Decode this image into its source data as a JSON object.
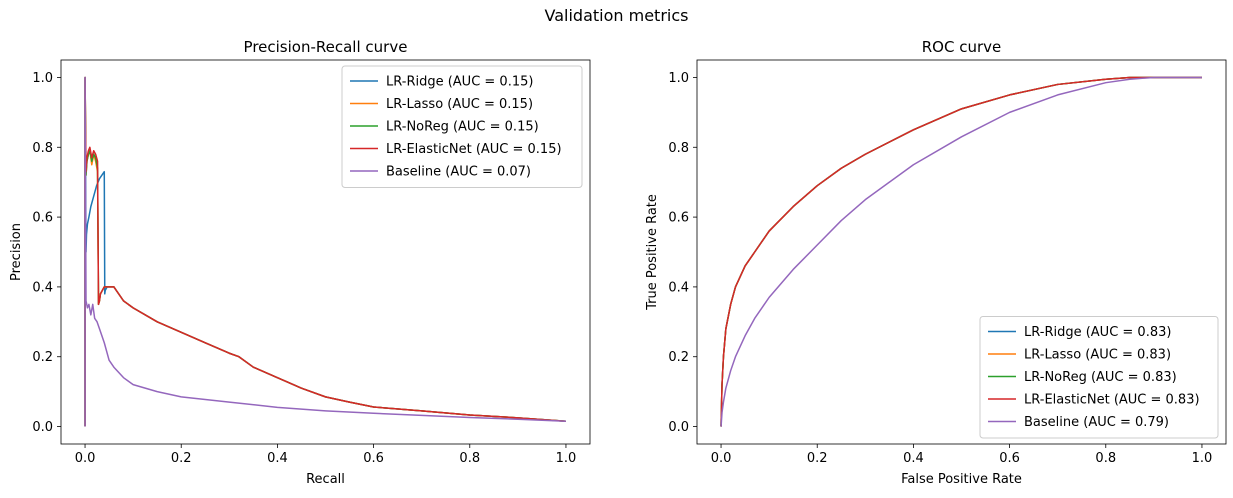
{
  "figure": {
    "suptitle": "Validation metrics"
  },
  "chart_data": [
    {
      "type": "line",
      "title": "Precision-Recall curve",
      "xlabel": "Recall",
      "ylabel": "Precision",
      "xlim": [
        -0.05,
        1.05
      ],
      "ylim": [
        -0.05,
        1.05
      ],
      "xticks": [
        "0.0",
        "0.2",
        "0.4",
        "0.6",
        "0.8",
        "1.0"
      ],
      "yticks": [
        "0.0",
        "0.2",
        "0.4",
        "0.6",
        "0.8",
        "1.0"
      ],
      "legend_position": "upper right",
      "series": [
        {
          "name": "LR-Ridge (AUC = 0.15)",
          "color": "#1f77b4",
          "x": [
            0,
            0,
            0.002,
            0.003,
            0.005,
            0.008,
            0.012,
            0.018,
            0.024,
            0.03,
            0.035,
            0.04,
            0.041,
            0.042,
            0.046,
            0.06,
            0.08,
            0.1,
            0.15,
            0.2,
            0.25,
            0.3,
            0.32,
            0.35,
            0.4,
            0.45,
            0.5,
            0.55,
            0.6,
            0.7,
            0.8,
            0.9,
            1.0
          ],
          "y": [
            0.0,
            1.0,
            0.5,
            0.55,
            0.58,
            0.6,
            0.63,
            0.66,
            0.69,
            0.71,
            0.72,
            0.73,
            0.38,
            0.39,
            0.4,
            0.4,
            0.36,
            0.34,
            0.3,
            0.27,
            0.24,
            0.21,
            0.2,
            0.17,
            0.14,
            0.11,
            0.085,
            0.07,
            0.056,
            0.045,
            0.033,
            0.025,
            0.015
          ]
        },
        {
          "name": "LR-Lasso (AUC = 0.15)",
          "color": "#ff7f0e",
          "x": [
            0,
            0,
            0.002,
            0.004,
            0.007,
            0.01,
            0.014,
            0.018,
            0.022,
            0.026,
            0.028,
            0.03,
            0.032,
            0.036,
            0.04,
            0.046,
            0.06,
            0.08,
            0.1,
            0.15,
            0.2,
            0.25,
            0.3,
            0.32,
            0.35,
            0.4,
            0.45,
            0.5,
            0.55,
            0.6,
            0.7,
            0.8,
            0.9,
            1.0
          ],
          "y": [
            0.0,
            1.0,
            0.72,
            0.76,
            0.78,
            0.79,
            0.75,
            0.78,
            0.76,
            0.73,
            0.35,
            0.36,
            0.38,
            0.39,
            0.4,
            0.4,
            0.4,
            0.36,
            0.34,
            0.3,
            0.27,
            0.24,
            0.21,
            0.2,
            0.17,
            0.14,
            0.11,
            0.085,
            0.07,
            0.056,
            0.045,
            0.033,
            0.025,
            0.015
          ]
        },
        {
          "name": "LR-NoReg (AUC = 0.15)",
          "color": "#2ca02c",
          "x": [
            0,
            0,
            0.002,
            0.004,
            0.007,
            0.01,
            0.014,
            0.018,
            0.022,
            0.026,
            0.028,
            0.03,
            0.032,
            0.036,
            0.04,
            0.046,
            0.06,
            0.08,
            0.1,
            0.15,
            0.2,
            0.25,
            0.3,
            0.32,
            0.35,
            0.4,
            0.45,
            0.5,
            0.55,
            0.6,
            0.7,
            0.8,
            0.9,
            1.0
          ],
          "y": [
            0.0,
            1.0,
            0.72,
            0.76,
            0.78,
            0.79,
            0.76,
            0.78,
            0.77,
            0.74,
            0.35,
            0.36,
            0.38,
            0.39,
            0.4,
            0.4,
            0.4,
            0.36,
            0.34,
            0.3,
            0.27,
            0.24,
            0.21,
            0.2,
            0.17,
            0.14,
            0.11,
            0.085,
            0.07,
            0.056,
            0.045,
            0.033,
            0.025,
            0.015
          ]
        },
        {
          "name": "LR-ElasticNet (AUC = 0.15)",
          "color": "#d62728",
          "x": [
            0,
            0,
            0.002,
            0.004,
            0.007,
            0.01,
            0.014,
            0.018,
            0.022,
            0.026,
            0.028,
            0.03,
            0.032,
            0.036,
            0.04,
            0.046,
            0.06,
            0.08,
            0.1,
            0.15,
            0.2,
            0.25,
            0.3,
            0.32,
            0.35,
            0.4,
            0.45,
            0.5,
            0.55,
            0.6,
            0.7,
            0.8,
            0.9,
            1.0
          ],
          "y": [
            0.0,
            1.0,
            0.73,
            0.77,
            0.79,
            0.8,
            0.77,
            0.79,
            0.78,
            0.76,
            0.35,
            0.36,
            0.38,
            0.39,
            0.4,
            0.4,
            0.4,
            0.36,
            0.34,
            0.3,
            0.27,
            0.24,
            0.21,
            0.2,
            0.17,
            0.14,
            0.11,
            0.085,
            0.07,
            0.056,
            0.045,
            0.033,
            0.025,
            0.015
          ]
        },
        {
          "name": "Baseline (AUC = 0.07)",
          "color": "#9467bd",
          "x": [
            0,
            0,
            0.002,
            0.005,
            0.008,
            0.012,
            0.016,
            0.02,
            0.025,
            0.03,
            0.04,
            0.05,
            0.06,
            0.08,
            0.1,
            0.15,
            0.2,
            0.3,
            0.4,
            0.5,
            0.6,
            0.7,
            0.8,
            0.9,
            1.0
          ],
          "y": [
            0.0,
            1.0,
            0.36,
            0.34,
            0.35,
            0.32,
            0.35,
            0.31,
            0.3,
            0.28,
            0.24,
            0.19,
            0.17,
            0.14,
            0.12,
            0.1,
            0.085,
            0.07,
            0.055,
            0.045,
            0.038,
            0.032,
            0.026,
            0.021,
            0.015
          ]
        }
      ]
    },
    {
      "type": "line",
      "title": "ROC curve",
      "xlabel": "False Positive Rate",
      "ylabel": "True Positive Rate",
      "xlim": [
        -0.05,
        1.05
      ],
      "ylim": [
        -0.05,
        1.05
      ],
      "xticks": [
        "0.0",
        "0.2",
        "0.4",
        "0.6",
        "0.8",
        "1.0"
      ],
      "yticks": [
        "0.0",
        "0.2",
        "0.4",
        "0.6",
        "0.8",
        "1.0"
      ],
      "legend_position": "lower right",
      "series": [
        {
          "name": "LR-Ridge (AUC = 0.83)",
          "color": "#1f77b4",
          "x": [
            0,
            0.002,
            0.005,
            0.01,
            0.02,
            0.03,
            0.05,
            0.07,
            0.1,
            0.15,
            0.2,
            0.25,
            0.3,
            0.4,
            0.5,
            0.6,
            0.7,
            0.8,
            0.85,
            0.9,
            1.0
          ],
          "y": [
            0,
            0.12,
            0.2,
            0.28,
            0.35,
            0.4,
            0.46,
            0.5,
            0.56,
            0.63,
            0.69,
            0.74,
            0.78,
            0.85,
            0.91,
            0.95,
            0.98,
            0.995,
            1.0,
            1.0,
            1.0
          ]
        },
        {
          "name": "LR-Lasso (AUC = 0.83)",
          "color": "#ff7f0e",
          "x": [
            0,
            0.002,
            0.005,
            0.01,
            0.02,
            0.03,
            0.05,
            0.07,
            0.1,
            0.15,
            0.2,
            0.25,
            0.3,
            0.4,
            0.5,
            0.6,
            0.7,
            0.8,
            0.85,
            0.9,
            1.0
          ],
          "y": [
            0,
            0.12,
            0.2,
            0.28,
            0.35,
            0.4,
            0.46,
            0.5,
            0.56,
            0.63,
            0.69,
            0.74,
            0.78,
            0.85,
            0.91,
            0.95,
            0.98,
            0.995,
            1.0,
            1.0,
            1.0
          ]
        },
        {
          "name": "LR-NoReg (AUC = 0.83)",
          "color": "#2ca02c",
          "x": [
            0,
            0.002,
            0.005,
            0.01,
            0.02,
            0.03,
            0.05,
            0.07,
            0.1,
            0.15,
            0.2,
            0.25,
            0.3,
            0.4,
            0.5,
            0.6,
            0.7,
            0.8,
            0.85,
            0.9,
            1.0
          ],
          "y": [
            0,
            0.12,
            0.2,
            0.28,
            0.35,
            0.4,
            0.46,
            0.5,
            0.56,
            0.63,
            0.69,
            0.74,
            0.78,
            0.85,
            0.91,
            0.95,
            0.98,
            0.995,
            1.0,
            1.0,
            1.0
          ]
        },
        {
          "name": "LR-ElasticNet (AUC = 0.83)",
          "color": "#d62728",
          "x": [
            0,
            0.002,
            0.005,
            0.01,
            0.02,
            0.03,
            0.05,
            0.07,
            0.1,
            0.15,
            0.2,
            0.25,
            0.3,
            0.4,
            0.5,
            0.6,
            0.7,
            0.8,
            0.85,
            0.9,
            1.0
          ],
          "y": [
            0,
            0.12,
            0.2,
            0.28,
            0.35,
            0.4,
            0.46,
            0.5,
            0.56,
            0.63,
            0.69,
            0.74,
            0.78,
            0.85,
            0.91,
            0.95,
            0.98,
            0.995,
            1.0,
            1.0,
            1.0
          ]
        },
        {
          "name": "Baseline (AUC = 0.79)",
          "color": "#9467bd",
          "x": [
            0,
            0.002,
            0.005,
            0.01,
            0.02,
            0.03,
            0.05,
            0.07,
            0.1,
            0.15,
            0.2,
            0.25,
            0.3,
            0.4,
            0.5,
            0.6,
            0.7,
            0.8,
            0.85,
            0.9,
            1.0
          ],
          "y": [
            0,
            0.04,
            0.07,
            0.11,
            0.16,
            0.2,
            0.26,
            0.31,
            0.37,
            0.45,
            0.52,
            0.59,
            0.65,
            0.75,
            0.83,
            0.9,
            0.95,
            0.985,
            0.995,
            1.0,
            1.0
          ]
        }
      ]
    }
  ]
}
